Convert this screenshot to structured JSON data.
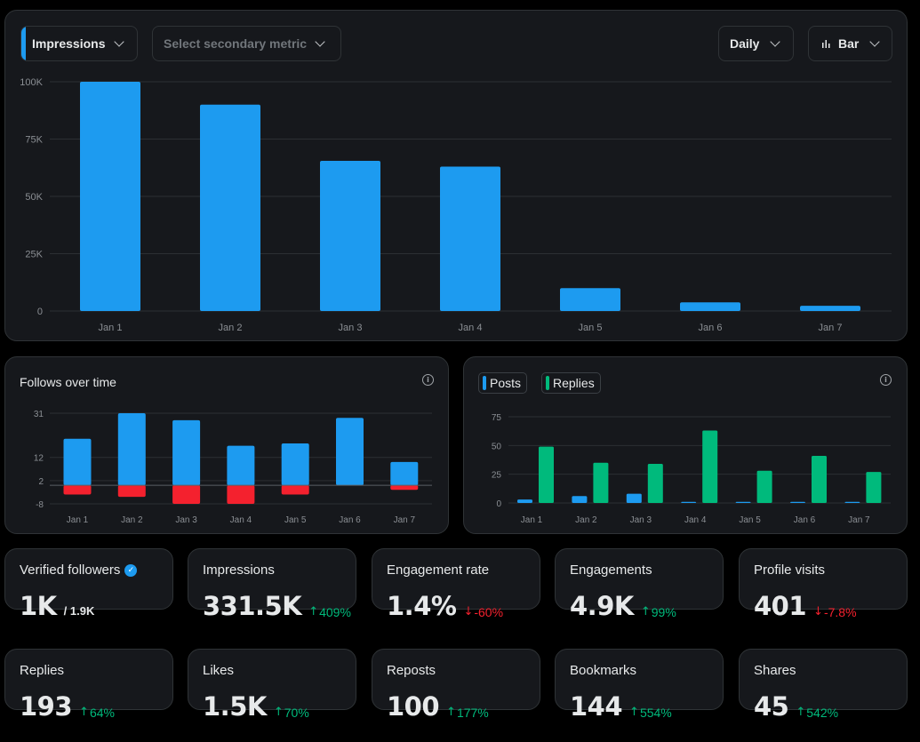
{
  "toolbar": {
    "primary_metric": "Impressions",
    "secondary_placeholder": "Select secondary metric",
    "period": "Daily",
    "chart_type": "Bar",
    "primary_color": "#1d9bf0"
  },
  "chart_data": [
    {
      "type": "bar",
      "categories": [
        "Jan 1",
        "Jan 2",
        "Jan 3",
        "Jan 4",
        "Jan 5",
        "Jan 6",
        "Jan 7"
      ],
      "values": [
        100000,
        90000,
        65500,
        63000,
        10000,
        3800,
        2300
      ],
      "ylim": [
        0,
        100000
      ],
      "yticks": [
        0,
        25000,
        50000,
        75000,
        100000
      ],
      "ytick_labels": [
        "0",
        "25K",
        "50K",
        "75K",
        "100K"
      ],
      "grid": true,
      "color": "#1d9bf0"
    },
    {
      "type": "bar",
      "title": "Follows over time",
      "categories": [
        "Jan 1",
        "Jan 2",
        "Jan 3",
        "Jan 4",
        "Jan 5",
        "Jan 6",
        "Jan 7"
      ],
      "series": [
        {
          "values": [
            20,
            31,
            28,
            17,
            18,
            29,
            10
          ],
          "color": "#1d9bf0"
        },
        {
          "values": [
            -4,
            -5,
            -8,
            -8,
            -4,
            0,
            -2
          ],
          "color": "#f4212e"
        }
      ],
      "ylim": [
        -8,
        31
      ],
      "yticks": [
        -8,
        2,
        12,
        31
      ],
      "grid": true
    },
    {
      "type": "bar",
      "categories": [
        "Jan 1",
        "Jan 2",
        "Jan 3",
        "Jan 4",
        "Jan 5",
        "Jan 6",
        "Jan 7"
      ],
      "series": [
        {
          "name": "Posts",
          "values": [
            3,
            6,
            8,
            1,
            1,
            1,
            1
          ],
          "color": "#1d9bf0"
        },
        {
          "name": "Replies",
          "values": [
            49,
            35,
            34,
            63,
            28,
            41,
            27
          ],
          "color": "#00ba7c"
        }
      ],
      "ylim": [
        0,
        75
      ],
      "yticks": [
        0,
        25,
        50,
        75
      ],
      "grid": true,
      "legend": "top-left"
    }
  ],
  "stats": [
    {
      "label": "Verified followers",
      "value": "1K",
      "sub": "/ 1.9K",
      "change": "",
      "dir": "",
      "verified": true
    },
    {
      "label": "Impressions",
      "value": "331.5K",
      "sub": "",
      "change": "409%",
      "dir": "up"
    },
    {
      "label": "Engagement rate",
      "value": "1.4%",
      "sub": "",
      "change": "-60%",
      "dir": "down"
    },
    {
      "label": "Engagements",
      "value": "4.9K",
      "sub": "",
      "change": "99%",
      "dir": "up"
    },
    {
      "label": "Profile visits",
      "value": "401",
      "sub": "",
      "change": "-7.8%",
      "dir": "down"
    },
    {
      "label": "Replies",
      "value": "193",
      "sub": "",
      "change": "64%",
      "dir": "up"
    },
    {
      "label": "Likes",
      "value": "1.5K",
      "sub": "",
      "change": "70%",
      "dir": "up"
    },
    {
      "label": "Reposts",
      "value": "100",
      "sub": "",
      "change": "177%",
      "dir": "up"
    },
    {
      "label": "Bookmarks",
      "value": "144",
      "sub": "",
      "change": "554%",
      "dir": "up"
    },
    {
      "label": "Shares",
      "value": "45",
      "sub": "",
      "change": "542%",
      "dir": "up"
    }
  ],
  "icons": {
    "chevron": "chevron-down-icon",
    "info": "info-icon",
    "bar_chart": "bar-chart-icon",
    "verified": "verified-badge-icon",
    "arrow_up": "↑",
    "arrow_down": "↓",
    "info_glyph": "i",
    "check_glyph": "✓"
  }
}
